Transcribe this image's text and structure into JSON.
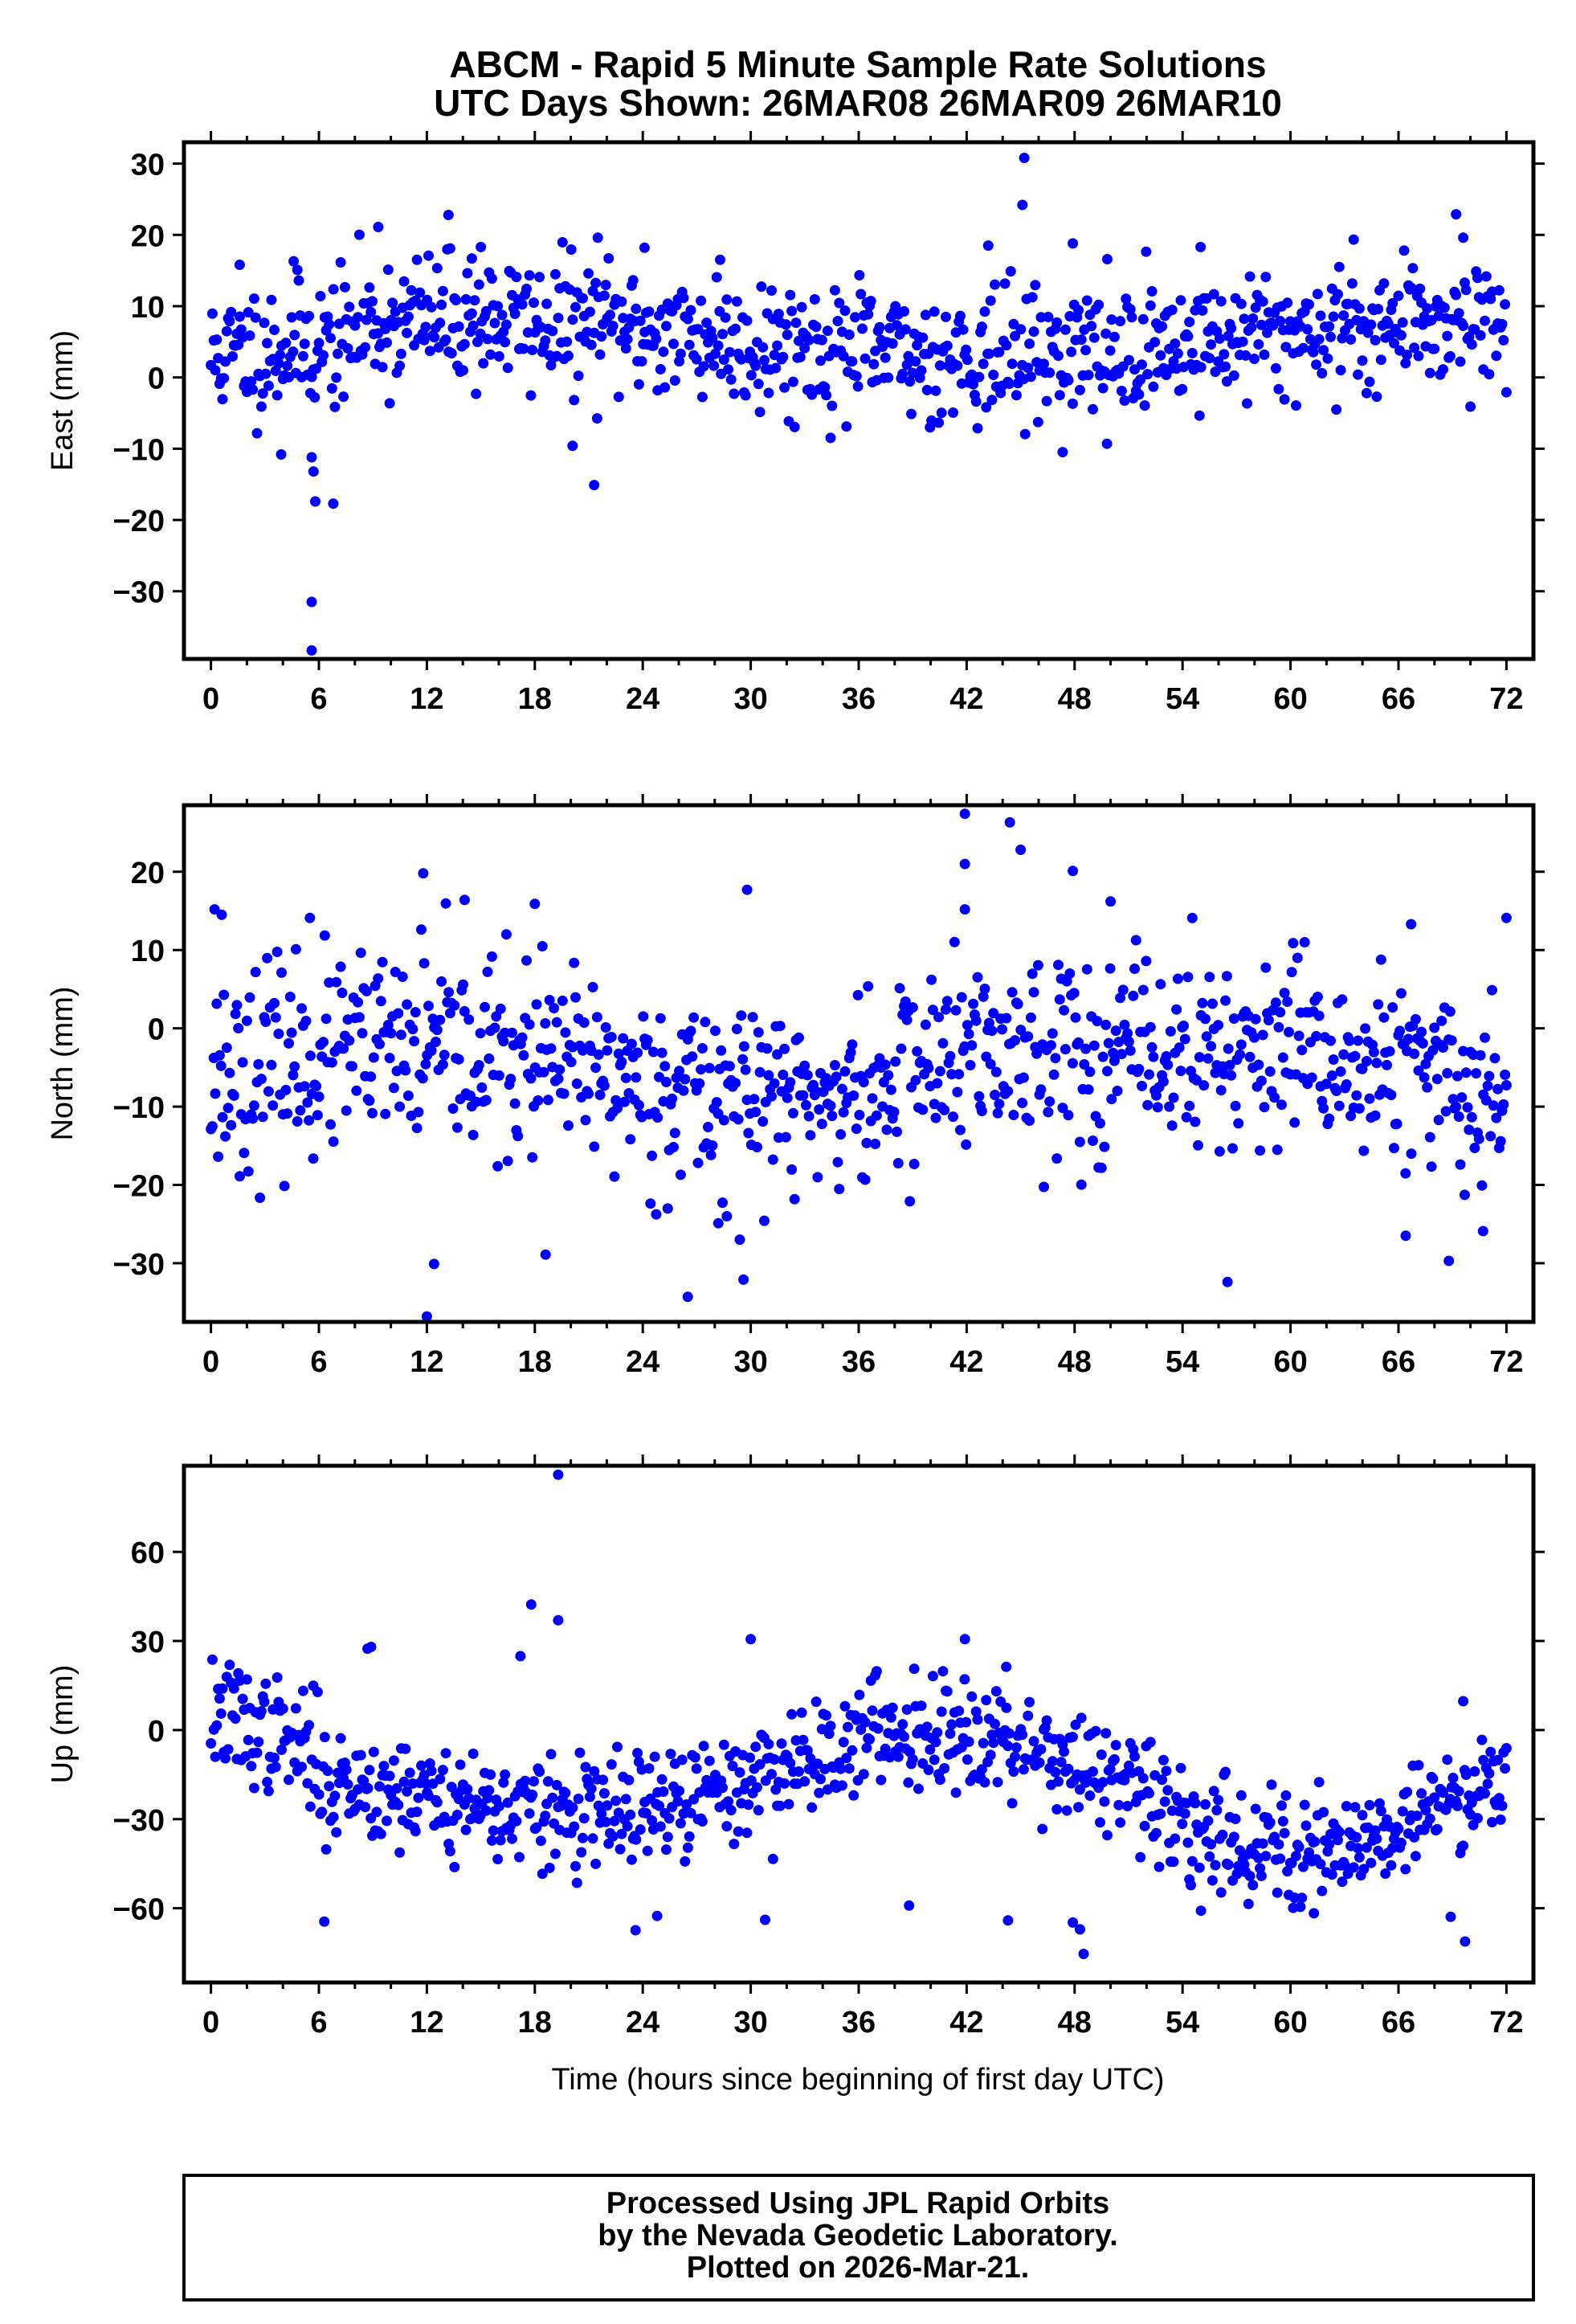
{
  "title": {
    "line1": "ABCM - Rapid 5 Minute Sample Rate Solutions",
    "line2": "UTC Days Shown:  26MAR08 26MAR09 26MAR10"
  },
  "xlabel": "Time (hours since beginning of first day UTC)",
  "footer": {
    "line1": "Processed Using JPL Rapid Orbits",
    "line2": "by the Nevada Geodetic Laboratory.",
    "line3": "Plotted on 2026-Mar-21."
  },
  "colors": {
    "points": "#0000ff",
    "frame": "#000000"
  },
  "chart_data": [
    {
      "type": "scatter",
      "ylabel": "East (mm)",
      "xlim": [
        -1.5,
        73.5
      ],
      "ylim": [
        -39.5,
        33
      ],
      "xticks": [
        0,
        6,
        12,
        18,
        24,
        30,
        36,
        42,
        48,
        54,
        60,
        66,
        72
      ],
      "yticks": [
        30,
        20,
        10,
        0,
        -10,
        -20,
        -30
      ],
      "outliers": [
        [
          5.6,
          -38.3
        ],
        [
          5.6,
          -31.5
        ],
        [
          5.8,
          -17.4
        ],
        [
          6.8,
          -17.7
        ],
        [
          5.7,
          -13.2
        ],
        [
          5.6,
          -11.2
        ],
        [
          3.9,
          -10.8
        ],
        [
          21.3,
          -15.1
        ],
        [
          45.2,
          30.8
        ],
        [
          45.1,
          24.2
        ],
        [
          13.2,
          22.8
        ],
        [
          9.3,
          21.1
        ],
        [
          69.2,
          22.9
        ],
        [
          69.6,
          19.6
        ],
        [
          21.5,
          19.6
        ],
        [
          47.9,
          18.8
        ],
        [
          43.2,
          18.5
        ],
        [
          55.0,
          18.3
        ],
        [
          24.1,
          18.2
        ],
        [
          1.6,
          15.8
        ],
        [
          4.6,
          16.3
        ],
        [
          28.3,
          16.5
        ],
        [
          15.0,
          18.3
        ],
        [
          14.5,
          16.7
        ],
        [
          49.8,
          -9.3
        ],
        [
          20.1,
          -9.6
        ]
      ]
    },
    {
      "type": "scatter",
      "ylabel": "North (mm)",
      "xlim": [
        -1.5,
        73.5
      ],
      "ylim": [
        -37.5,
        28.5
      ],
      "xticks": [
        0,
        6,
        12,
        18,
        24,
        30,
        36,
        42,
        48,
        54,
        60,
        66,
        72
      ],
      "yticks": [
        20,
        10,
        0,
        -10,
        -20,
        -30
      ],
      "outliers": [
        [
          12.0,
          -36.8
        ],
        [
          26.5,
          -34.3
        ],
        [
          29.6,
          -32.1
        ],
        [
          56.5,
          -32.4
        ],
        [
          12.4,
          -30.1
        ],
        [
          18.6,
          -28.9
        ],
        [
          68.8,
          -29.7
        ],
        [
          28.2,
          -24.9
        ],
        [
          66.4,
          -26.5
        ],
        [
          70.7,
          -25.9
        ],
        [
          41.9,
          27.4
        ],
        [
          44.4,
          26.3
        ],
        [
          41.9,
          21.0
        ],
        [
          45.0,
          22.8
        ],
        [
          47.9,
          20.1
        ],
        [
          11.8,
          19.8
        ],
        [
          29.8,
          17.7
        ],
        [
          18.0,
          15.9
        ],
        [
          14.1,
          16.4
        ],
        [
          41.9,
          15.2
        ],
        [
          0.2,
          15.2
        ],
        [
          0.6,
          14.5
        ],
        [
          5.5,
          14.1
        ],
        [
          72.0,
          14.1
        ],
        [
          66.7,
          13.3
        ],
        [
          50.0,
          16.2
        ]
      ]
    },
    {
      "type": "scatter",
      "ylabel": "Up (mm)",
      "xlim": [
        -1.5,
        73.5
      ],
      "ylim": [
        -85,
        89
      ],
      "xticks": [
        0,
        6,
        12,
        18,
        24,
        30,
        36,
        42,
        48,
        54,
        60,
        66,
        72
      ],
      "yticks": [
        60,
        30,
        0,
        -30,
        -60
      ],
      "outliers": [
        [
          19.3,
          86.0
        ],
        [
          17.8,
          42.3
        ],
        [
          19.3,
          37.0
        ],
        [
          30.0,
          30.6
        ],
        [
          41.9,
          30.6
        ],
        [
          8.7,
          27.4
        ],
        [
          8.9,
          28.0
        ],
        [
          17.2,
          24.9
        ],
        [
          44.2,
          21.3
        ],
        [
          69.6,
          9.7
        ],
        [
          48.5,
          -75.4
        ],
        [
          48.3,
          -67.1
        ],
        [
          47.9,
          -64.8
        ],
        [
          6.3,
          -64.5
        ],
        [
          23.6,
          -67.4
        ],
        [
          30.8,
          -63.9
        ],
        [
          69.7,
          -71.2
        ],
        [
          44.3,
          -64.1
        ],
        [
          68.9,
          -62.9
        ],
        [
          61.3,
          -61.7
        ],
        [
          38.8,
          -59.1
        ],
        [
          24.8,
          -62.6
        ]
      ]
    }
  ]
}
